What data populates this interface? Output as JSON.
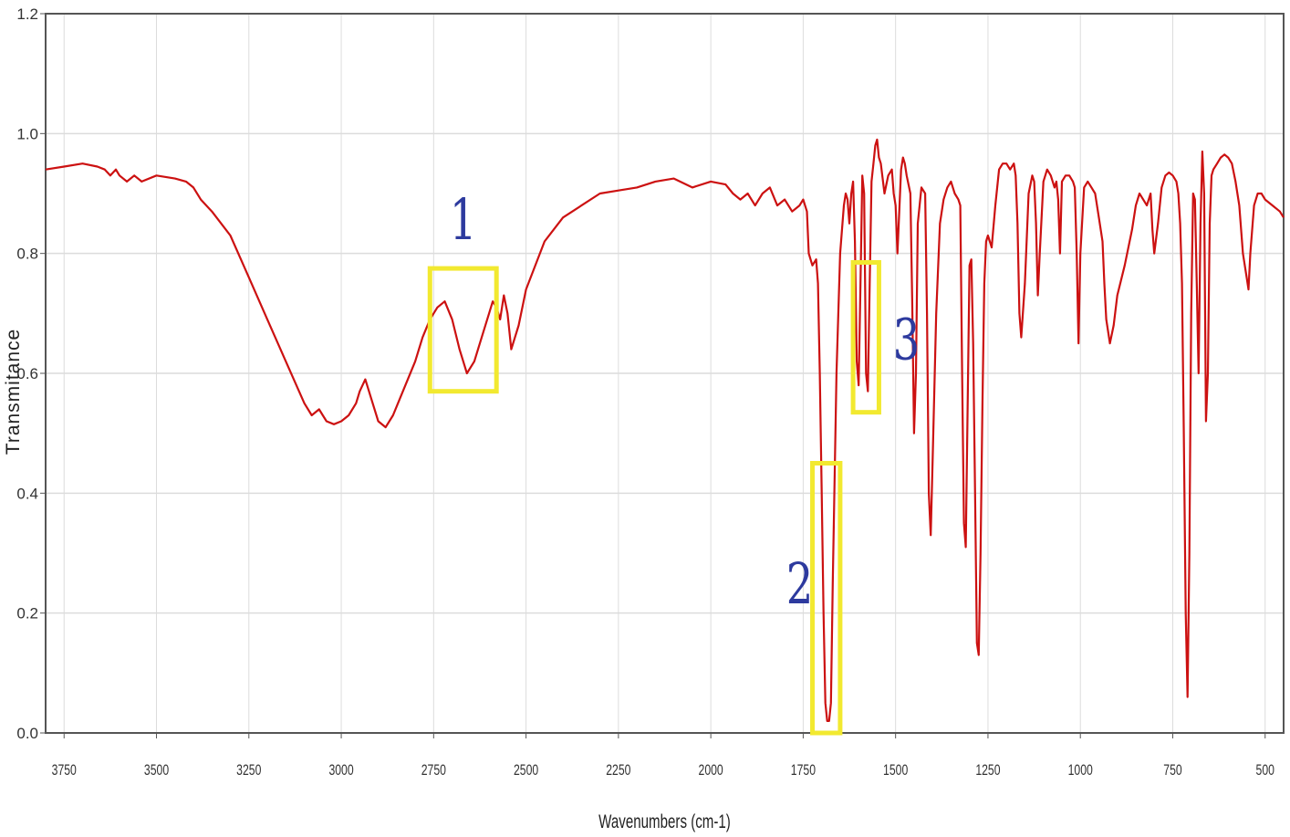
{
  "chart_data": {
    "type": "line",
    "title": "",
    "xlabel": "Wavenumbers (cm-1)",
    "ylabel": "Transmitance",
    "xlim": [
      3800,
      450
    ],
    "ylim": [
      0,
      1.2
    ],
    "x_reversed": true,
    "grid": true,
    "xticks": [
      3750,
      3500,
      3250,
      3000,
      2750,
      2500,
      2250,
      2000,
      1750,
      1500,
      1250,
      1000,
      750,
      500
    ],
    "yticks": [
      "0.0",
      "0.2",
      "0.4",
      "0.6",
      "0.8",
      "1.0",
      "1.2"
    ],
    "series": [
      {
        "color": "#cc1111",
        "x": [
          3800,
          3750,
          3700,
          3660,
          3640,
          3625,
          3610,
          3600,
          3580,
          3560,
          3540,
          3500,
          3450,
          3420,
          3400,
          3380,
          3350,
          3300,
          3250,
          3200,
          3150,
          3100,
          3080,
          3060,
          3050,
          3040,
          3020,
          3000,
          2980,
          2960,
          2950,
          2935,
          2920,
          2900,
          2880,
          2860,
          2840,
          2800,
          2780,
          2760,
          2740,
          2720,
          2700,
          2680,
          2660,
          2640,
          2620,
          2600,
          2590,
          2580,
          2570,
          2560,
          2550,
          2540,
          2520,
          2500,
          2450,
          2400,
          2350,
          2300,
          2250,
          2200,
          2150,
          2100,
          2050,
          2000,
          1960,
          1940,
          1920,
          1900,
          1880,
          1860,
          1840,
          1820,
          1800,
          1780,
          1760,
          1750,
          1740,
          1735,
          1725,
          1715,
          1710,
          1705,
          1700,
          1695,
          1690,
          1685,
          1680,
          1675,
          1670,
          1660,
          1650,
          1640,
          1635,
          1630,
          1625,
          1620,
          1615,
          1610,
          1605,
          1600,
          1595,
          1590,
          1585,
          1580,
          1575,
          1570,
          1565,
          1560,
          1555,
          1550,
          1545,
          1540,
          1530,
          1520,
          1510,
          1505,
          1500,
          1495,
          1490,
          1485,
          1480,
          1475,
          1470,
          1460,
          1455,
          1450,
          1445,
          1440,
          1430,
          1420,
          1415,
          1410,
          1405,
          1400,
          1390,
          1380,
          1370,
          1360,
          1350,
          1340,
          1330,
          1325,
          1320,
          1315,
          1310,
          1305,
          1300,
          1295,
          1290,
          1285,
          1280,
          1275,
          1270,
          1265,
          1260,
          1255,
          1250,
          1240,
          1230,
          1220,
          1210,
          1200,
          1190,
          1180,
          1175,
          1170,
          1165,
          1160,
          1150,
          1140,
          1130,
          1125,
          1120,
          1115,
          1110,
          1100,
          1090,
          1080,
          1070,
          1065,
          1060,
          1055,
          1050,
          1040,
          1030,
          1020,
          1015,
          1010,
          1005,
          1000,
          990,
          980,
          970,
          960,
          950,
          940,
          935,
          930,
          920,
          910,
          900,
          880,
          860,
          850,
          840,
          830,
          820,
          810,
          805,
          800,
          790,
          780,
          770,
          760,
          750,
          740,
          735,
          730,
          725,
          720,
          715,
          710,
          705,
          700,
          695,
          690,
          685,
          680,
          675,
          670,
          665,
          660,
          655,
          650,
          645,
          640,
          630,
          620,
          610,
          600,
          590,
          580,
          570,
          560,
          550,
          545,
          540,
          530,
          520,
          510,
          500,
          480,
          460,
          450
        ],
        "y": [
          0.94,
          0.945,
          0.95,
          0.945,
          0.94,
          0.93,
          0.94,
          0.93,
          0.92,
          0.93,
          0.92,
          0.93,
          0.925,
          0.92,
          0.91,
          0.89,
          0.87,
          0.83,
          0.76,
          0.69,
          0.62,
          0.55,
          0.53,
          0.54,
          0.53,
          0.52,
          0.515,
          0.52,
          0.53,
          0.55,
          0.57,
          0.59,
          0.56,
          0.52,
          0.51,
          0.53,
          0.56,
          0.62,
          0.66,
          0.69,
          0.71,
          0.72,
          0.69,
          0.64,
          0.6,
          0.62,
          0.66,
          0.7,
          0.72,
          0.71,
          0.69,
          0.73,
          0.7,
          0.64,
          0.68,
          0.74,
          0.82,
          0.86,
          0.88,
          0.9,
          0.905,
          0.91,
          0.92,
          0.925,
          0.91,
          0.92,
          0.915,
          0.9,
          0.89,
          0.9,
          0.88,
          0.9,
          0.91,
          0.88,
          0.89,
          0.87,
          0.88,
          0.89,
          0.87,
          0.8,
          0.78,
          0.79,
          0.75,
          0.6,
          0.4,
          0.2,
          0.05,
          0.02,
          0.02,
          0.05,
          0.25,
          0.6,
          0.8,
          0.88,
          0.9,
          0.89,
          0.85,
          0.9,
          0.92,
          0.82,
          0.62,
          0.58,
          0.75,
          0.93,
          0.9,
          0.6,
          0.57,
          0.75,
          0.92,
          0.95,
          0.98,
          0.99,
          0.96,
          0.95,
          0.9,
          0.93,
          0.94,
          0.9,
          0.88,
          0.8,
          0.87,
          0.94,
          0.96,
          0.95,
          0.93,
          0.9,
          0.72,
          0.5,
          0.6,
          0.85,
          0.91,
          0.9,
          0.7,
          0.4,
          0.33,
          0.45,
          0.7,
          0.85,
          0.89,
          0.91,
          0.92,
          0.9,
          0.89,
          0.88,
          0.6,
          0.35,
          0.31,
          0.55,
          0.78,
          0.79,
          0.65,
          0.4,
          0.15,
          0.13,
          0.3,
          0.55,
          0.75,
          0.82,
          0.83,
          0.81,
          0.88,
          0.94,
          0.95,
          0.95,
          0.94,
          0.95,
          0.93,
          0.85,
          0.7,
          0.66,
          0.75,
          0.9,
          0.93,
          0.92,
          0.85,
          0.73,
          0.8,
          0.92,
          0.94,
          0.93,
          0.91,
          0.92,
          0.89,
          0.8,
          0.92,
          0.93,
          0.93,
          0.92,
          0.91,
          0.8,
          0.65,
          0.8,
          0.91,
          0.92,
          0.91,
          0.9,
          0.86,
          0.82,
          0.75,
          0.69,
          0.65,
          0.68,
          0.73,
          0.78,
          0.84,
          0.88,
          0.9,
          0.89,
          0.88,
          0.9,
          0.84,
          0.8,
          0.85,
          0.91,
          0.93,
          0.935,
          0.93,
          0.92,
          0.9,
          0.85,
          0.75,
          0.5,
          0.2,
          0.06,
          0.3,
          0.7,
          0.9,
          0.89,
          0.75,
          0.6,
          0.85,
          0.97,
          0.9,
          0.52,
          0.6,
          0.85,
          0.93,
          0.94,
          0.95,
          0.96,
          0.965,
          0.96,
          0.95,
          0.92,
          0.88,
          0.8,
          0.76,
          0.74,
          0.8,
          0.88,
          0.9,
          0.9,
          0.89,
          0.88,
          0.87,
          0.86
        ]
      }
    ],
    "annotations": [
      {
        "text": "1",
        "x_range": [
          2760,
          2580
        ],
        "y_range": [
          0.57,
          0.775
        ]
      },
      {
        "text": "2",
        "x_range": [
          1725,
          1650
        ],
        "y_range": [
          0.0,
          0.45
        ]
      },
      {
        "text": "3",
        "x_range": [
          1615,
          1545
        ],
        "y_range": [
          0.535,
          0.785
        ]
      }
    ],
    "colors": {
      "line": "#cc1111",
      "highlight_box": "#f2e930",
      "annotation_text": "#2d3a9e",
      "grid": "#dcdcdc",
      "axis": "#555555"
    }
  }
}
